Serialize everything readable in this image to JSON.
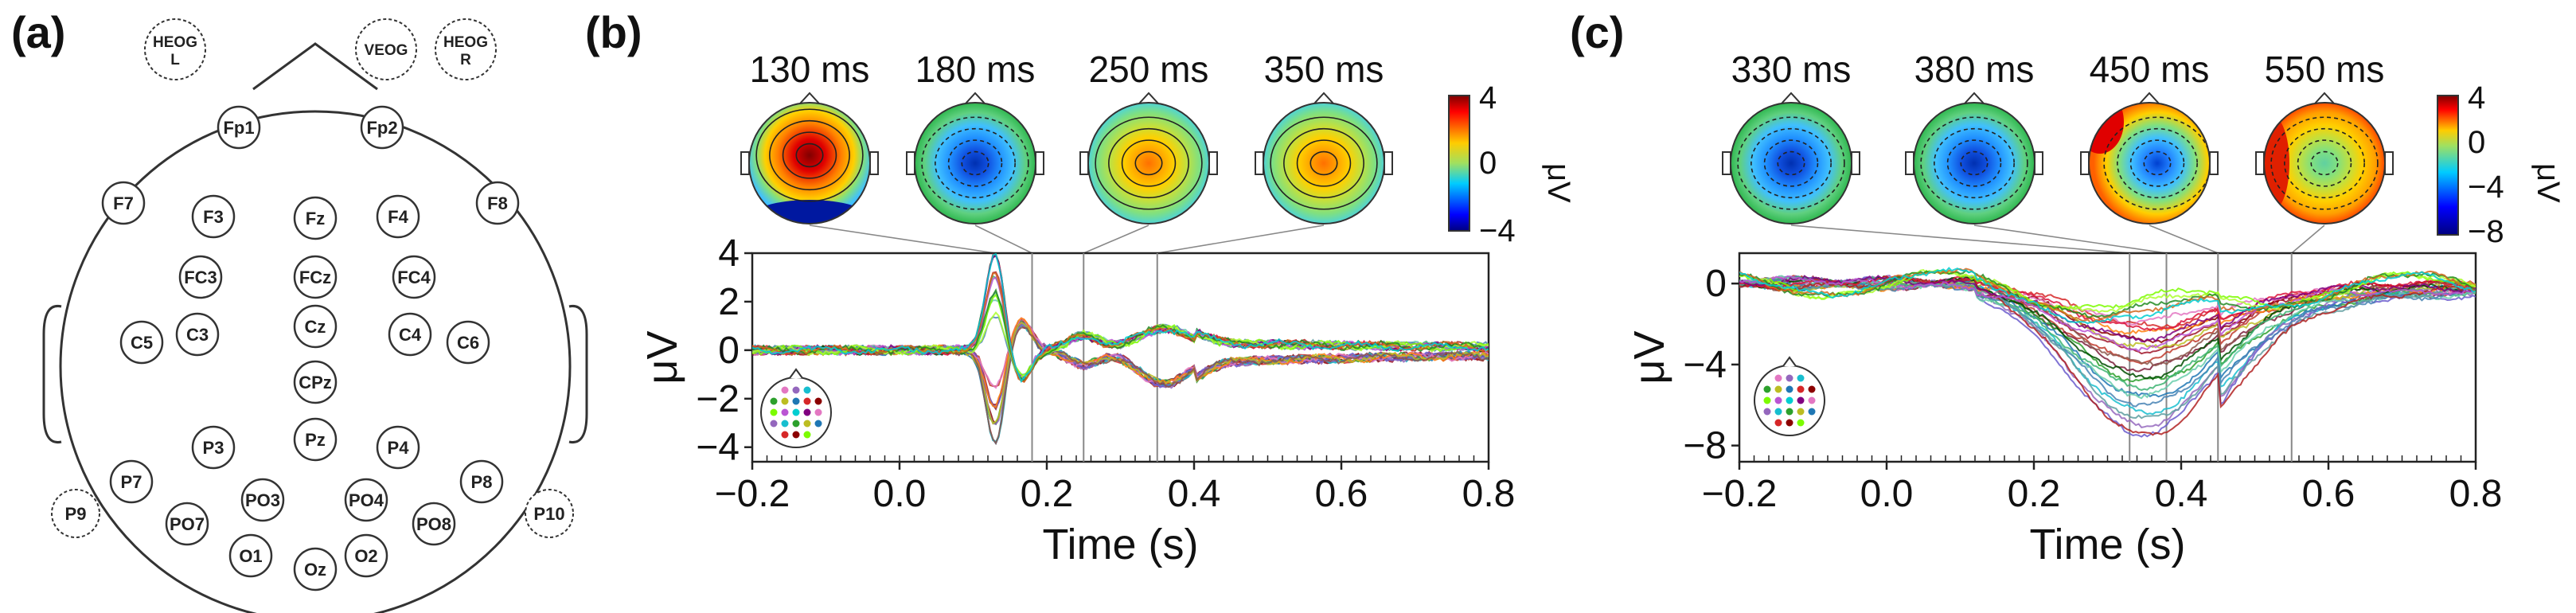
{
  "panel_a": {
    "label": "(a)",
    "eog": [
      {
        "id": "heog-l",
        "lines": [
          "HEOG",
          "L"
        ]
      },
      {
        "id": "veog",
        "lines": [
          "VEOG"
        ]
      },
      {
        "id": "heog-r",
        "lines": [
          "HEOG",
          "R"
        ]
      }
    ],
    "electrodes": [
      "Fp1",
      "Fp2",
      "F7",
      "F3",
      "Fz",
      "F4",
      "F8",
      "FC3",
      "FCz",
      "FC4",
      "C5",
      "C3",
      "Cz",
      "C4",
      "C6",
      "CPz",
      "Pz",
      "P3",
      "P4",
      "P7",
      "P8",
      "PO3",
      "PO4",
      "PO7",
      "PO8",
      "O1",
      "Oz",
      "O2"
    ],
    "outer_electrodes": [
      "P9",
      "P10"
    ]
  },
  "colors": {
    "gridline": "#888888",
    "axis": "#222222",
    "cb_low": "#00007f",
    "cb_high": "#7f0000"
  },
  "chart_data": [
    {
      "type": "line",
      "panel": "(b)",
      "topomap_times": [
        "130 ms",
        "180 ms",
        "250 ms",
        "350 ms"
      ],
      "topomap_patterns": [
        "pos-center-neg-back",
        "neg-center",
        "pos-center",
        "pos-center"
      ],
      "colorbar": {
        "ticks": [
          "4",
          "0",
          "−4"
        ],
        "label": "μV",
        "range": [
          -4,
          4
        ]
      },
      "marker_times": [
        0.18,
        0.25,
        0.35
      ],
      "xlabel": "Time (s)",
      "ylabel": "μV",
      "xlim": [
        -0.2,
        0.8
      ],
      "ylim": [
        -4.6,
        4
      ],
      "xticks": [
        "−0.2",
        "0.0",
        "0.2",
        "0.4",
        "0.6",
        "0.8"
      ],
      "yticks": [
        "4",
        "2",
        "0",
        "−2",
        "−4"
      ],
      "series_count": 28,
      "series_description": "ERP waveforms; sharp deflection ~0.13 s (±4 μV), secondary peaks near 0.18–0.35 s"
    },
    {
      "type": "line",
      "panel": "(c)",
      "topomap_times": [
        "330 ms",
        "380 ms",
        "450 ms",
        "550 ms"
      ],
      "topomap_patterns": [
        "neg-center",
        "neg-center",
        "neg-center-pos-left",
        "pos-outer-neg-center"
      ],
      "colorbar": {
        "ticks": [
          "4",
          "0",
          "−4",
          "−8"
        ],
        "label": "μV",
        "range": [
          -8,
          4
        ]
      },
      "marker_times": [
        0.33,
        0.38,
        0.45,
        0.55
      ],
      "xlabel": "Time (s)",
      "ylabel": "μV",
      "xlim": [
        -0.2,
        0.8
      ],
      "ylim": [
        -8.8,
        1.5
      ],
      "xticks": [
        "−0.2",
        "0.0",
        "0.2",
        "0.4",
        "0.6",
        "0.8"
      ],
      "yticks": [
        "0",
        "−4",
        "−8"
      ],
      "series_count": 28,
      "series_description": "Slow negative wave starting ~0.15 s, trough ~0.35 s (down to −8 μV), recovering toward 0 by 0.8 s"
    }
  ]
}
